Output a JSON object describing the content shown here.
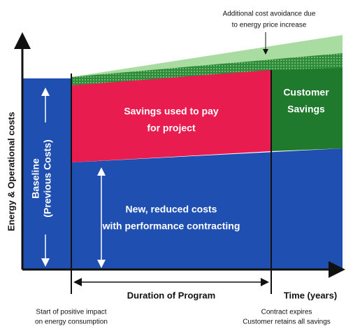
{
  "annotation": {
    "lines": [
      "Additional cost avoidance due",
      "to energy price increase"
    ]
  },
  "y_axis_label": "Energy & Operational costs",
  "x_axis_label": "Time (years)",
  "baseline": {
    "lines": [
      "Baseline",
      "(Previous Costs)"
    ]
  },
  "project_savings": {
    "lines": [
      "Savings used to pay",
      "for project"
    ]
  },
  "reduced_costs": {
    "lines": [
      "New, reduced costs",
      "with performance contracting"
    ]
  },
  "customer_savings": {
    "lines": [
      "Customer",
      "Savings"
    ]
  },
  "duration": "Duration of Program",
  "start_note": {
    "lines": [
      "Start of positive impact",
      "on energy consumption"
    ]
  },
  "end_note": {
    "lines": [
      "Contract expires",
      "Customer retains all savings"
    ]
  }
}
